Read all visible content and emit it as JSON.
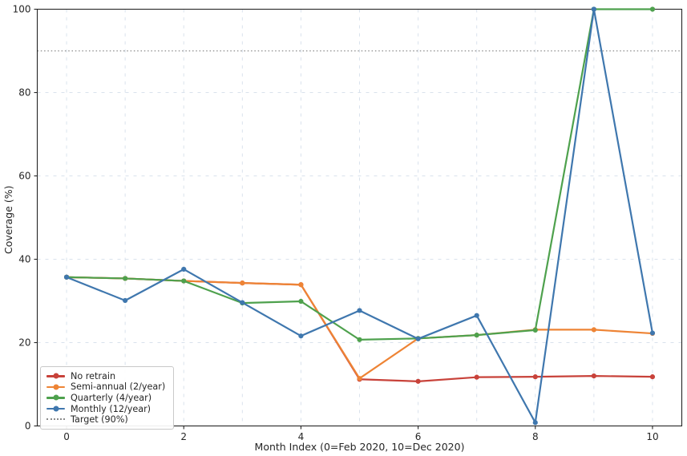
{
  "chart_data": {
    "type": "line",
    "x": [
      0,
      1,
      2,
      3,
      4,
      5,
      6,
      7,
      8,
      9,
      10
    ],
    "series": [
      {
        "name": "No retrain",
        "color": "#c8423a",
        "values": [
          35.7,
          35.4,
          34.8,
          34.3,
          33.9,
          11.2,
          10.7,
          11.7,
          11.8,
          12.0,
          11.8
        ]
      },
      {
        "name": "Semi-annual (2/year)",
        "color": "#ee8435",
        "values": [
          35.7,
          35.4,
          34.8,
          34.3,
          33.9,
          11.4,
          21.0,
          21.8,
          23.1,
          23.1,
          22.2
        ]
      },
      {
        "name": "Quarterly (4/year)",
        "color": "#4ea14d",
        "values": [
          35.7,
          35.4,
          34.8,
          29.5,
          29.9,
          20.7,
          21.0,
          21.8,
          23.0,
          100.0,
          100.0
        ]
      },
      {
        "name": "Monthly (12/year)",
        "color": "#3f77ae",
        "values": [
          35.7,
          30.1,
          37.6,
          29.6,
          21.6,
          27.7,
          20.9,
          26.5,
          0.8,
          100.0,
          22.3
        ]
      }
    ],
    "target_line": {
      "label": "Target (90%)",
      "value": 90,
      "color": "#8a8a8a",
      "style": "dotted"
    },
    "xlabel": "Month Index (0=Feb 2020, 10=Dec 2020)",
    "ylabel": "Coverage (%)",
    "xlim": [
      -0.5,
      10.5
    ],
    "ylim": [
      0,
      100
    ],
    "xticks": [
      0,
      2,
      4,
      6,
      8,
      10
    ],
    "yticks": [
      0,
      20,
      40,
      60,
      80,
      100
    ],
    "grid": {
      "x_lines": [
        0,
        1,
        2,
        3,
        4,
        5,
        6,
        7,
        8,
        9,
        10
      ],
      "y_lines": [
        20,
        40,
        60,
        80
      ],
      "color": "#d9e2ec",
      "style": "dashed"
    },
    "legend_position": "lower left",
    "title": "",
    "spine_color": "#262626",
    "marker": "circle"
  }
}
